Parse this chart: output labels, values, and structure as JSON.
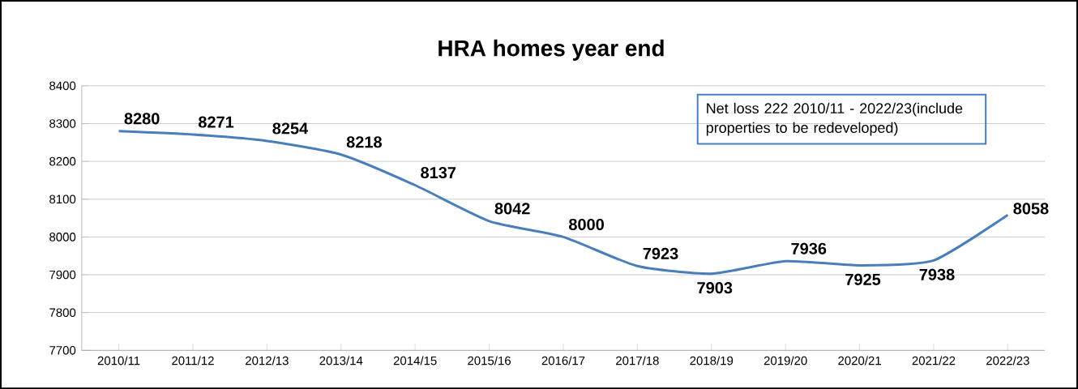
{
  "chart_data": {
    "type": "line",
    "title": "HRA homes year end",
    "categories": [
      "2010/11",
      "2011/12",
      "2012/13",
      "2013/14",
      "2014/15",
      "2015/16",
      "2016/17",
      "2017/18",
      "2018/19",
      "2019/20",
      "2020/21",
      "2021/22",
      "2022/23"
    ],
    "values": [
      8280,
      8271,
      8254,
      8218,
      8137,
      8042,
      8000,
      7923,
      7903,
      7936,
      7925,
      7938,
      8058
    ],
    "color": "#4a7ebb",
    "ylim": [
      7700,
      8400
    ],
    "yticks": [
      7700,
      7800,
      7900,
      8000,
      8100,
      8200,
      8300,
      8400
    ],
    "grid": "y",
    "data_labels": true,
    "annotations": [
      "Net loss 222 2010/11 - 2022/23(include properties to be redeveloped)"
    ]
  }
}
